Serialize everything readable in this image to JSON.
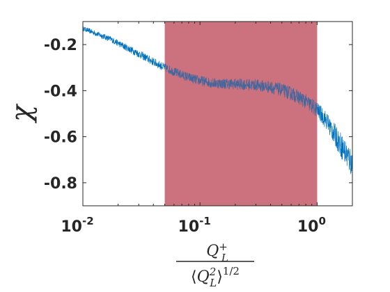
{
  "chart_data": {
    "type": "line",
    "title": "",
    "xscale": "log",
    "xlim": [
      0.01,
      2
    ],
    "ylim": [
      -0.9,
      -0.1
    ],
    "ylabel": "χ",
    "xlabel": {
      "numerator_base": "Q",
      "numerator_sub": "L",
      "numerator_sup": "+",
      "denominator_open": "⟨",
      "denominator_base": "Q",
      "denominator_sub": "L",
      "denominator_sup": "2",
      "denominator_close": "⟩",
      "denominator_power": "1/2"
    },
    "xticks": [
      {
        "value": 0.01,
        "base": "10",
        "exp": "-2"
      },
      {
        "value": 0.1,
        "base": "10",
        "exp": "-1"
      },
      {
        "value": 1,
        "base": "10",
        "exp": "0"
      }
    ],
    "yticks": [
      {
        "value": -0.2,
        "label": "-0.2"
      },
      {
        "value": -0.4,
        "label": "-0.4"
      },
      {
        "value": -0.6,
        "label": "-0.6"
      },
      {
        "value": -0.8,
        "label": "-0.8"
      }
    ],
    "highlight_band": {
      "x_start": 0.05,
      "x_end": 1.0,
      "color": "#c0505f"
    },
    "grid": false,
    "series": [
      {
        "color": "#0072bd",
        "points": [
          {
            "x": 0.01,
            "y": -0.13,
            "spread": 0.01
          },
          {
            "x": 0.013,
            "y": -0.152,
            "spread": 0.012
          },
          {
            "x": 0.017,
            "y": -0.175,
            "spread": 0.013
          },
          {
            "x": 0.022,
            "y": -0.205,
            "spread": 0.015
          },
          {
            "x": 0.03,
            "y": -0.24,
            "spread": 0.017
          },
          {
            "x": 0.04,
            "y": -0.275,
            "spread": 0.018
          },
          {
            "x": 0.05,
            "y": -0.3,
            "spread": 0.019
          },
          {
            "x": 0.065,
            "y": -0.325,
            "spread": 0.02
          },
          {
            "x": 0.08,
            "y": -0.343,
            "spread": 0.021
          },
          {
            "x": 0.1,
            "y": -0.357,
            "spread": 0.022
          },
          {
            "x": 0.13,
            "y": -0.367,
            "spread": 0.023
          },
          {
            "x": 0.17,
            "y": -0.37,
            "spread": 0.024
          },
          {
            "x": 0.22,
            "y": -0.372,
            "spread": 0.025
          },
          {
            "x": 0.3,
            "y": -0.376,
            "spread": 0.026
          },
          {
            "x": 0.4,
            "y": -0.385,
            "spread": 0.028
          },
          {
            "x": 0.5,
            "y": -0.397,
            "spread": 0.029
          },
          {
            "x": 0.65,
            "y": -0.42,
            "spread": 0.031
          },
          {
            "x": 0.8,
            "y": -0.447,
            "spread": 0.033
          },
          {
            "x": 1.0,
            "y": -0.483,
            "spread": 0.035
          },
          {
            "x": 1.2,
            "y": -0.53,
            "spread": 0.04
          },
          {
            "x": 1.45,
            "y": -0.6,
            "spread": 0.05
          },
          {
            "x": 1.7,
            "y": -0.66,
            "spread": 0.058
          },
          {
            "x": 2.0,
            "y": -0.72,
            "spread": 0.065
          }
        ]
      }
    ],
    "colors": {
      "axis": "#262626",
      "band_overlap": "#4b3a78"
    }
  }
}
